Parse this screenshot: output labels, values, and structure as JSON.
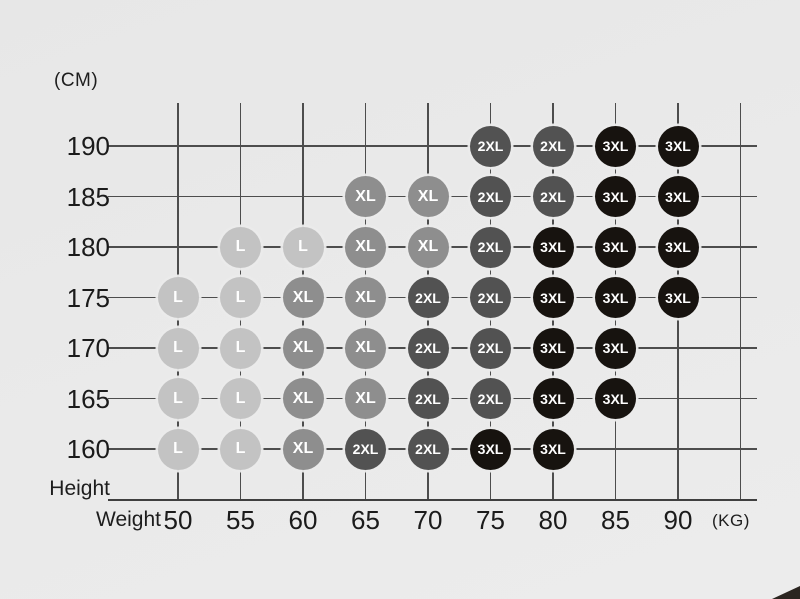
{
  "labels": {
    "y_unit": "(CM)",
    "x_unit": "(KG)",
    "y_axis": "Height",
    "x_axis": "Weight"
  },
  "colors": {
    "background": "#e9e9e9",
    "grid": "#4d4d4d",
    "text": "#1d1d1d",
    "dot_text": "#ffffff",
    "sizes": {
      "L": "#c3c3c3",
      "XL": "#8e8e8e",
      "2XL": "#525252",
      "3XL": "#17130f"
    }
  },
  "chart_data": {
    "type": "scatter",
    "title": "",
    "xlabel": "Weight",
    "ylabel": "Height",
    "x_unit": "(KG)",
    "y_unit": "(CM)",
    "x_ticks": [
      50,
      55,
      60,
      65,
      70,
      75,
      80,
      85,
      90
    ],
    "y_ticks": [
      190,
      185,
      180,
      175,
      170,
      165,
      160
    ],
    "legend": [
      "L",
      "XL",
      "2XL",
      "3XL"
    ],
    "grid": true,
    "rows": [
      {
        "height": 190,
        "points": [
          {
            "weight": 75,
            "size": "2XL"
          },
          {
            "weight": 80,
            "size": "2XL"
          },
          {
            "weight": 85,
            "size": "3XL"
          },
          {
            "weight": 90,
            "size": "3XL"
          }
        ]
      },
      {
        "height": 185,
        "points": [
          {
            "weight": 65,
            "size": "XL"
          },
          {
            "weight": 70,
            "size": "XL"
          },
          {
            "weight": 75,
            "size": "2XL"
          },
          {
            "weight": 80,
            "size": "2XL"
          },
          {
            "weight": 85,
            "size": "3XL"
          },
          {
            "weight": 90,
            "size": "3XL"
          }
        ]
      },
      {
        "height": 180,
        "points": [
          {
            "weight": 55,
            "size": "L"
          },
          {
            "weight": 60,
            "size": "L"
          },
          {
            "weight": 65,
            "size": "XL"
          },
          {
            "weight": 70,
            "size": "XL"
          },
          {
            "weight": 75,
            "size": "2XL"
          },
          {
            "weight": 80,
            "size": "3XL"
          },
          {
            "weight": 85,
            "size": "3XL"
          },
          {
            "weight": 90,
            "size": "3XL"
          }
        ]
      },
      {
        "height": 175,
        "points": [
          {
            "weight": 50,
            "size": "L"
          },
          {
            "weight": 55,
            "size": "L"
          },
          {
            "weight": 60,
            "size": "XL"
          },
          {
            "weight": 65,
            "size": "XL"
          },
          {
            "weight": 70,
            "size": "2XL"
          },
          {
            "weight": 75,
            "size": "2XL"
          },
          {
            "weight": 80,
            "size": "3XL"
          },
          {
            "weight": 85,
            "size": "3XL"
          },
          {
            "weight": 90,
            "size": "3XL"
          }
        ]
      },
      {
        "height": 170,
        "points": [
          {
            "weight": 50,
            "size": "L"
          },
          {
            "weight": 55,
            "size": "L"
          },
          {
            "weight": 60,
            "size": "XL"
          },
          {
            "weight": 65,
            "size": "XL"
          },
          {
            "weight": 70,
            "size": "2XL"
          },
          {
            "weight": 75,
            "size": "2XL"
          },
          {
            "weight": 80,
            "size": "3XL"
          },
          {
            "weight": 85,
            "size": "3XL"
          }
        ]
      },
      {
        "height": 165,
        "points": [
          {
            "weight": 50,
            "size": "L"
          },
          {
            "weight": 55,
            "size": "L"
          },
          {
            "weight": 60,
            "size": "XL"
          },
          {
            "weight": 65,
            "size": "XL"
          },
          {
            "weight": 70,
            "size": "2XL"
          },
          {
            "weight": 75,
            "size": "2XL"
          },
          {
            "weight": 80,
            "size": "3XL"
          },
          {
            "weight": 85,
            "size": "3XL"
          }
        ]
      },
      {
        "height": 160,
        "points": [
          {
            "weight": 50,
            "size": "L"
          },
          {
            "weight": 55,
            "size": "L"
          },
          {
            "weight": 60,
            "size": "XL"
          },
          {
            "weight": 65,
            "size": "2XL"
          },
          {
            "weight": 70,
            "size": "2XL"
          },
          {
            "weight": 75,
            "size": "3XL"
          },
          {
            "weight": 80,
            "size": "3XL"
          }
        ]
      }
    ]
  }
}
